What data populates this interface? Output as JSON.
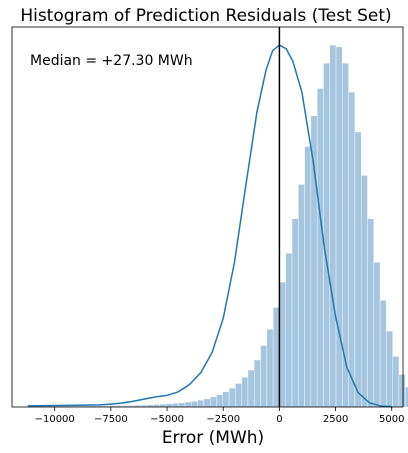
{
  "chart_data": {
    "type": "bar",
    "title": "Histogram of Prediction Residuals (Test Set)",
    "xlabel": "Error (MWh)",
    "ylabel": "",
    "xlim": [
      -11900,
      5500
    ],
    "ylim": [
      0,
      1.05
    ],
    "x_ticks": [
      -10000,
      -7500,
      -5000,
      -2500,
      0,
      2500,
      5000
    ],
    "x_tick_labels": [
      "−10000",
      "−7500",
      "−5000",
      "−2500",
      "0",
      "2500",
      "5000"
    ],
    "grid": false,
    "bin_width": 280,
    "bins_start": -11200,
    "histogram_heights": [
      0.003,
      0.003,
      0.003,
      0.003,
      0.003,
      0.003,
      0.003,
      0.003,
      0.003,
      0.003,
      0.003,
      0.003,
      0.003,
      0.004,
      0.004,
      0.004,
      0.004,
      0.005,
      0.005,
      0.006,
      0.007,
      0.008,
      0.009,
      0.01,
      0.012,
      0.014,
      0.016,
      0.019,
      0.023,
      0.028,
      0.034,
      0.042,
      0.052,
      0.065,
      0.082,
      0.102,
      0.13,
      0.17,
      0.215,
      0.275,
      0.345,
      0.425,
      0.52,
      0.615,
      0.72,
      0.805,
      0.88,
      0.95,
      1.0,
      0.995,
      0.95,
      0.87,
      0.76,
      0.64,
      0.52,
      0.4,
      0.295,
      0.21,
      0.14,
      0.09,
      0.055,
      0.03,
      0.016,
      0.008,
      0.004,
      0.002
    ],
    "kde_points": [
      [
        -11200,
        0.003
      ],
      [
        -10000,
        0.004
      ],
      [
        -9000,
        0.005
      ],
      [
        -8000,
        0.006
      ],
      [
        -7500,
        0.008
      ],
      [
        -7000,
        0.011
      ],
      [
        -6500,
        0.016
      ],
      [
        -6000,
        0.022
      ],
      [
        -5500,
        0.028
      ],
      [
        -5000,
        0.032
      ],
      [
        -4500,
        0.042
      ],
      [
        -4000,
        0.062
      ],
      [
        -3500,
        0.095
      ],
      [
        -3000,
        0.15
      ],
      [
        -2500,
        0.245
      ],
      [
        -2000,
        0.4
      ],
      [
        -1500,
        0.61
      ],
      [
        -1000,
        0.815
      ],
      [
        -600,
        0.93
      ],
      [
        -300,
        0.985
      ],
      [
        0,
        1.0
      ],
      [
        300,
        0.99
      ],
      [
        600,
        0.955
      ],
      [
        1000,
        0.87
      ],
      [
        1500,
        0.68
      ],
      [
        2000,
        0.44
      ],
      [
        2500,
        0.25
      ],
      [
        3000,
        0.11
      ],
      [
        3500,
        0.04
      ],
      [
        4000,
        0.012
      ],
      [
        4500,
        0.003
      ],
      [
        5000,
        0.001
      ]
    ],
    "vline_x": 0,
    "annotation": "Median = +27.30 MWh",
    "colors": {
      "bar": "#a6c6e0",
      "kde": "#1f77b4",
      "vline": "#000000"
    }
  }
}
